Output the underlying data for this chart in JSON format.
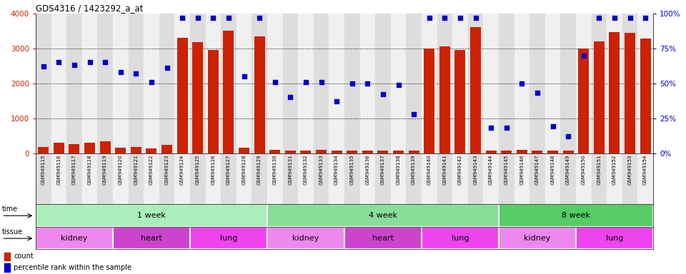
{
  "title": "GDS4316 / 1423292_a_at",
  "samples": [
    "GSM949115",
    "GSM949116",
    "GSM949117",
    "GSM949118",
    "GSM949119",
    "GSM949120",
    "GSM949121",
    "GSM949122",
    "GSM949123",
    "GSM949124",
    "GSM949125",
    "GSM949126",
    "GSM949127",
    "GSM949128",
    "GSM949129",
    "GSM949130",
    "GSM949131",
    "GSM949132",
    "GSM949133",
    "GSM949134",
    "GSM949135",
    "GSM949136",
    "GSM949137",
    "GSM949138",
    "GSM949139",
    "GSM949140",
    "GSM949141",
    "GSM949142",
    "GSM949143",
    "GSM949144",
    "GSM949145",
    "GSM949146",
    "GSM949147",
    "GSM949148",
    "GSM949149",
    "GSM949150",
    "GSM949151",
    "GSM949152",
    "GSM949153",
    "GSM949154"
  ],
  "counts": [
    180,
    300,
    250,
    290,
    340,
    150,
    175,
    130,
    230,
    3300,
    3180,
    2950,
    3500,
    150,
    3340,
    100,
    70,
    70,
    100,
    70,
    70,
    70,
    70,
    70,
    70,
    3000,
    3050,
    2950,
    3600,
    70,
    70,
    100,
    70,
    70,
    70,
    3000,
    3200,
    3470,
    3450,
    3280
  ],
  "percentile": [
    62,
    65,
    63,
    65,
    65,
    58,
    57,
    51,
    61,
    97,
    97,
    97,
    97,
    55,
    97,
    51,
    40,
    51,
    51,
    37,
    50,
    50,
    42,
    49,
    28,
    97,
    97,
    97,
    97,
    18,
    18,
    50,
    43,
    19,
    12,
    70,
    97,
    97,
    97,
    97
  ],
  "time_groups": [
    {
      "label": "1 week",
      "start": 0,
      "end": 14,
      "color": "#AAEEBB"
    },
    {
      "label": "4 week",
      "start": 15,
      "end": 29,
      "color": "#88DD99"
    },
    {
      "label": "8 week",
      "start": 30,
      "end": 39,
      "color": "#55CC66"
    }
  ],
  "tissue_groups": [
    {
      "label": "kidney",
      "start": 0,
      "end": 4,
      "color": "#EE88EE"
    },
    {
      "label": "heart",
      "start": 5,
      "end": 9,
      "color": "#DD66DD"
    },
    {
      "label": "lung",
      "start": 10,
      "end": 14,
      "color": "#EE55EE"
    },
    {
      "label": "kidney",
      "start": 15,
      "end": 19,
      "color": "#EE88EE"
    },
    {
      "label": "heart",
      "start": 20,
      "end": 24,
      "color": "#DD66DD"
    },
    {
      "label": "lung",
      "start": 25,
      "end": 29,
      "color": "#EE55EE"
    },
    {
      "label": "kidney",
      "start": 30,
      "end": 34,
      "color": "#EE88EE"
    },
    {
      "label": "lung",
      "start": 35,
      "end": 39,
      "color": "#EE55EE"
    }
  ],
  "bar_color": "#CC2200",
  "dot_color": "#0000CC",
  "ylim_left": [
    0,
    4000
  ],
  "ylim_right": [
    0,
    100
  ],
  "yticks_left": [
    0,
    1000,
    2000,
    3000,
    4000
  ],
  "yticks_right": [
    0,
    25,
    50,
    75,
    100
  ],
  "grid_yticks": [
    1000,
    2000,
    3000
  ],
  "grid_color": "black"
}
